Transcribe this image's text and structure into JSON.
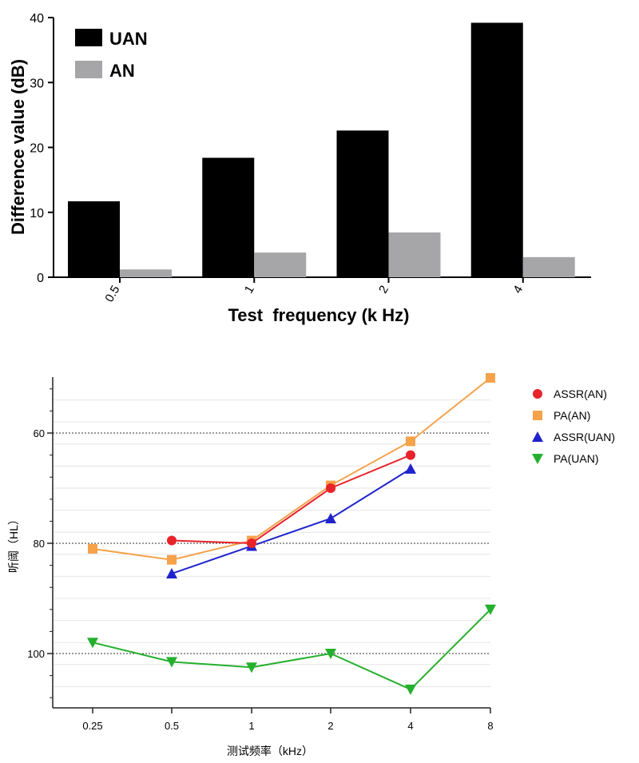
{
  "chart_data": [
    {
      "type": "bar",
      "title": "",
      "xlabel": "Test  frequency (k Hz)",
      "ylabel": "Difference value (dB)",
      "categories": [
        "0.5",
        "1",
        "2",
        "4"
      ],
      "ylim": [
        0,
        40
      ],
      "yticks": [
        0,
        10,
        20,
        30,
        40
      ],
      "legend_position": "top-left",
      "grid": false,
      "series": [
        {
          "name": "UAN",
          "color": "#000000",
          "values": [
            11.7,
            18.4,
            22.6,
            39.2
          ]
        },
        {
          "name": "AN",
          "color": "#a6a6a8",
          "values": [
            1.2,
            3.8,
            6.9,
            3.1
          ]
        }
      ]
    },
    {
      "type": "line",
      "title": "",
      "xlabel": "测试频率（kHz）",
      "ylabel": "听阈（HL）",
      "x_categories": [
        "0.25",
        "0.5",
        "1",
        "2",
        "4",
        "8"
      ],
      "ylim": [
        110,
        50
      ],
      "y_inverted": true,
      "yticks": [
        60,
        80,
        100
      ],
      "grid": true,
      "legend_position": "right",
      "series": [
        {
          "name": "ASSR(AN)",
          "color": "#e8232b",
          "marker": "circle",
          "values": [
            null,
            79.5,
            80,
            70,
            64,
            null
          ]
        },
        {
          "name": "PA(AN)",
          "color": "#f5a24a",
          "marker": "square",
          "values": [
            81,
            83,
            79.5,
            69.5,
            61.5,
            50
          ]
        },
        {
          "name": "ASSR(UAN)",
          "color": "#1f23cc",
          "marker": "triangle-up",
          "values": [
            null,
            85.5,
            80.5,
            75.5,
            66.5,
            null
          ]
        },
        {
          "name": "PA(UAN)",
          "color": "#24b02d",
          "marker": "triangle-down",
          "values": [
            98,
            101.5,
            102.5,
            100,
            106.5,
            92
          ]
        }
      ]
    }
  ]
}
